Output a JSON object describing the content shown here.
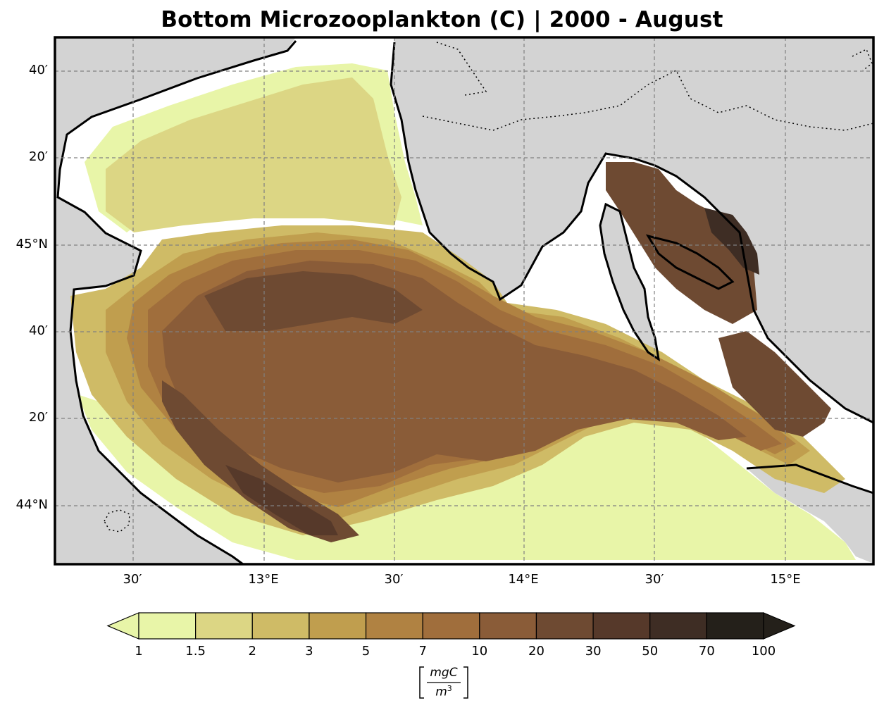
{
  "title": "Bottom Microzooplankton (C) | 2000 - August",
  "map": {
    "region": "Northern Adriatic Sea",
    "colors": {
      "land": "#d3d3d3",
      "no_data": "#ffffff",
      "coastline": "#000000",
      "grid": "#808080",
      "border": "#000000"
    },
    "lat_ticks": [
      "40′",
      "20′",
      "45°N",
      "40′",
      "20′",
      "44°N"
    ],
    "lon_ticks": [
      "30′",
      "13°E",
      "30′",
      "14°E",
      "30′",
      "15°E"
    ]
  },
  "colorbar": {
    "levels": [
      "1",
      "1.5",
      "2",
      "3",
      "5",
      "7",
      "10",
      "20",
      "30",
      "50",
      "70",
      "100"
    ],
    "colors": [
      "#e8f5a8",
      "#dcd684",
      "#cfbb66",
      "#c09e4e",
      "#b08242",
      "#a06e3c",
      "#8a5c38",
      "#6e4a32",
      "#56392a",
      "#3e2d24",
      "#24201a",
      "#24201a"
    ],
    "under_color": "#e8f5a8",
    "over_color": "#24201a",
    "unit_numerator": "mgC",
    "unit_denominator": "m",
    "unit_exponent": "3"
  }
}
